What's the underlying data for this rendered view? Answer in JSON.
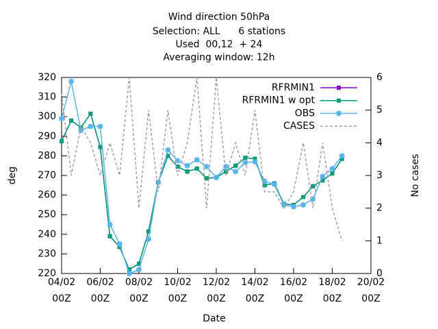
{
  "chart_data": {
    "type": "line",
    "title": [
      "Wind direction 50hPa",
      "Selection: ALL      6 stations",
      "Used  00,12  + 24",
      "Averaging window: 12h"
    ],
    "xlabel": "Date",
    "ylabel": "deg",
    "y2label": "No cases",
    "x": [
      "04/02 00Z",
      "04/02 12Z",
      "05/02 00Z",
      "05/02 12Z",
      "06/02 00Z",
      "06/02 12Z",
      "07/02 00Z",
      "07/02 12Z",
      "08/02 00Z",
      "08/02 12Z",
      "09/02 00Z",
      "09/02 12Z",
      "10/02 00Z",
      "10/02 12Z",
      "11/02 00Z",
      "11/02 12Z",
      "12/02 00Z",
      "12/02 12Z",
      "13/02 00Z",
      "13/02 12Z",
      "14/02 00Z",
      "14/02 12Z",
      "15/02 00Z",
      "15/02 12Z",
      "16/02 00Z",
      "16/02 12Z",
      "17/02 00Z",
      "17/02 12Z",
      "18/02 00Z",
      "18/02 12Z"
    ],
    "xlim": [
      "04/02 00Z",
      "20/02 00Z"
    ],
    "xticks": [
      {
        "value": "04/02 00Z",
        "label": "04/02\n00Z"
      },
      {
        "value": "06/02 00Z",
        "label": "06/02\n00Z"
      },
      {
        "value": "08/02 00Z",
        "label": "08/02\n00Z"
      },
      {
        "value": "10/02 00Z",
        "label": "10/02\n00Z"
      },
      {
        "value": "12/02 00Z",
        "label": "12/02\n00Z"
      },
      {
        "value": "14/02 00Z",
        "label": "14/02\n00Z"
      },
      {
        "value": "16/02 00Z",
        "label": "16/02\n00Z"
      },
      {
        "value": "18/02 00Z",
        "label": "18/02\n00Z"
      },
      {
        "value": "20/02 00Z",
        "label": "20/02\n00Z"
      }
    ],
    "ylim": [
      220,
      320
    ],
    "yticks": [
      220,
      230,
      240,
      250,
      260,
      270,
      280,
      290,
      300,
      310,
      320
    ],
    "y2lim": [
      0,
      6
    ],
    "y2ticks": [
      0,
      1,
      2,
      3,
      4,
      5,
      6
    ],
    "legend": "upper right",
    "series": [
      {
        "name": "RFRMIN1",
        "color": "#9400d3",
        "marker": "square",
        "values": [
          287.5,
          298,
          294.5,
          301.5,
          284.5,
          239,
          233.5,
          222,
          225,
          241.5,
          266.5,
          280,
          274.5,
          272,
          273.5,
          268.5,
          269,
          272,
          275,
          279,
          278.5,
          265,
          266,
          255.5,
          255,
          259,
          264.5,
          267.5,
          271,
          278.5
        ]
      },
      {
        "name": "RFRMIN1 w opt",
        "color": "#009e73",
        "marker": "square",
        "values": [
          287.5,
          298,
          294.5,
          301.5,
          284.5,
          239,
          233.5,
          222,
          225,
          241.5,
          266.5,
          280,
          274.5,
          272,
          273.5,
          268.5,
          269,
          272,
          275,
          279,
          278.5,
          265,
          266,
          255.5,
          255,
          259,
          264.5,
          267.5,
          271,
          278.5
        ]
      },
      {
        "name": "OBS",
        "color": "#56b4e9",
        "marker": "star",
        "values": [
          299,
          318,
          293,
          295,
          295,
          245,
          235,
          220,
          222,
          237.5,
          266.5,
          283,
          277.5,
          275,
          278,
          274.5,
          269,
          274.5,
          272,
          276.5,
          277,
          267,
          265.5,
          255,
          254,
          255,
          258,
          269.5,
          273.5,
          280
        ]
      },
      {
        "name": "CASES",
        "color": "#a0a0a0",
        "axis": "y2",
        "dashed": true,
        "values": [
          5.5,
          3,
          4.5,
          4,
          3,
          4,
          3,
          6,
          2,
          5,
          2.5,
          5,
          3,
          4,
          6,
          2,
          6,
          3,
          4,
          3,
          5,
          2.5,
          2.5,
          2,
          2.5,
          4,
          2,
          4,
          2,
          1
        ]
      }
    ]
  }
}
